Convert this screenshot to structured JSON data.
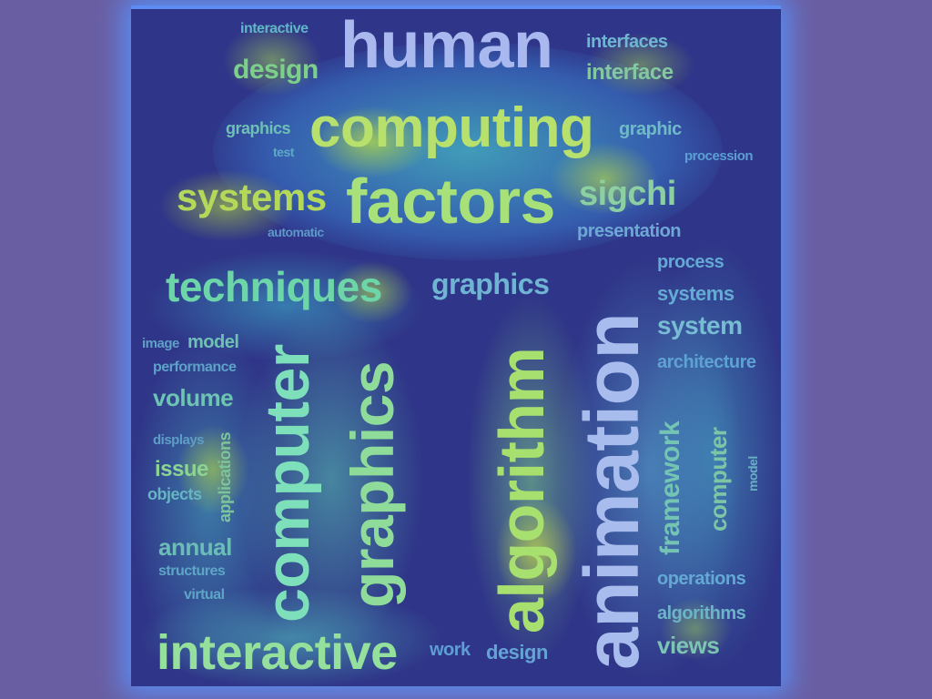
{
  "image": {
    "kind": "word-cloud-attention-heatmap",
    "colors": {
      "page_bg": "#6a5ea2",
      "canvas_bg": "#2f3588",
      "glow": "#5a8cf0",
      "hot": "#b7e04a",
      "warm": "#53d9a0",
      "cool": "#4ea3f0"
    }
  },
  "words": {
    "interactive_top": "interactive",
    "design_top": "design",
    "human": "human",
    "interfaces": "interfaces",
    "interface": "interface",
    "graphics_small": "graphics",
    "test": "test",
    "computing": "computing",
    "graphic": "graphic",
    "procession": "procession",
    "systems_left": "systems",
    "factors": "factors",
    "sigchi": "sigchi",
    "automatic": "automatic",
    "presentation": "presentation",
    "techniques": "techniques",
    "graphics_mid": "graphics",
    "process": "process",
    "systems_right": "systems",
    "system": "system",
    "architecture": "architecture",
    "image": "image",
    "model_left": "model",
    "performance": "performance",
    "volume": "volume",
    "displays": "displays",
    "issue": "issue",
    "objects": "objects",
    "applications": "applications",
    "annual": "annual",
    "structures": "structures",
    "virtual": "virtual",
    "computer_big": "computer",
    "graphics_big": "graphics",
    "algorithm": "algorithm",
    "animation": "animation",
    "framework": "framework",
    "computer_right": "computer",
    "model_right": "model",
    "operations": "operations",
    "algorithms": "algorithms",
    "views": "views",
    "interactive_bottom": "interactive",
    "work": "work",
    "design_bottom": "design"
  }
}
